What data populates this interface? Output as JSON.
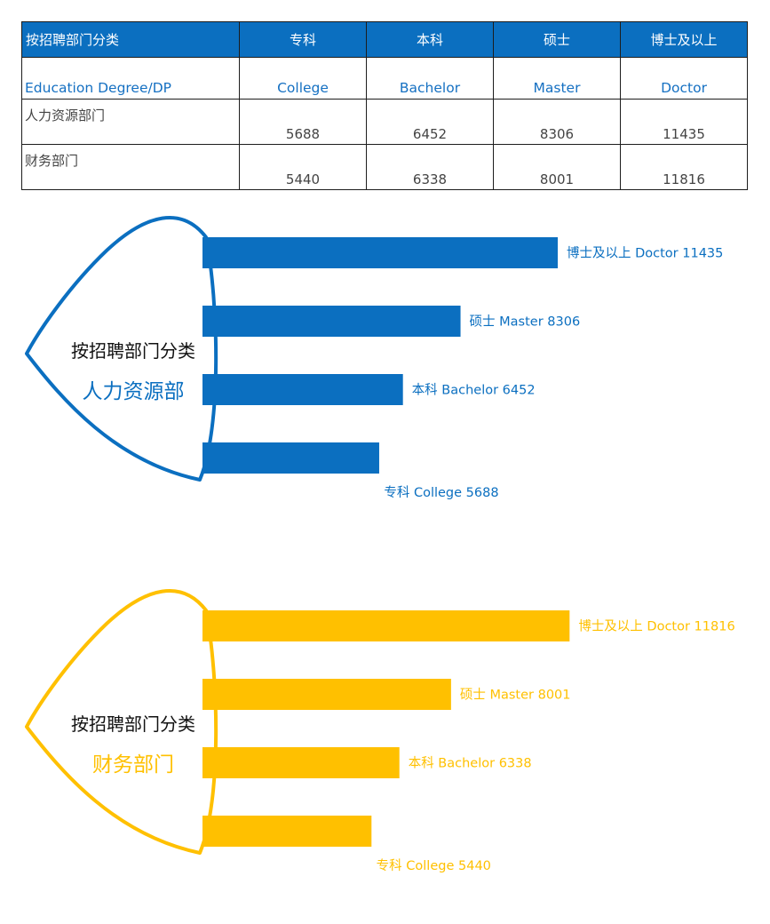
{
  "table": {
    "headers": [
      "按招聘部门分类",
      "专科",
      "本科",
      "硕士",
      "博士及以上"
    ],
    "english_row": [
      "Education  Degree/DP",
      "College",
      "Bachelor",
      "Master",
      "Doctor"
    ],
    "rows": [
      {
        "label": "人力资源部门",
        "values": [
          "5688",
          "6452",
          "8306",
          "11435"
        ]
      },
      {
        "label": "财务部门",
        "values": [
          "5440",
          "6338",
          "8001",
          "11816"
        ]
      }
    ]
  },
  "colors": {
    "blue": "#0b6fc0",
    "gold": "#ffc000",
    "header_bg": "#0b6fc0"
  },
  "chart_data": [
    {
      "type": "bar",
      "orientation": "horizontal",
      "title": "按招聘部门分类",
      "subtitle": "人力资源部",
      "color": "#0b6fc0",
      "categories": [
        "博士及以上 Doctor",
        "硕士 Master",
        "本科 Bachelor",
        "专科 College"
      ],
      "values": [
        11435,
        8306,
        6452,
        5688
      ],
      "labels": [
        "博士及以上 Doctor 11435",
        "硕士 Master 8306",
        "本科 Bachelor 6452",
        "专科 College 5688"
      ]
    },
    {
      "type": "bar",
      "orientation": "horizontal",
      "title": "按招聘部门分类",
      "subtitle": "财务部门",
      "color": "#ffc000",
      "categories": [
        "博士及以上 Doctor",
        "硕士 Master",
        "本科 Bachelor",
        "专科 College"
      ],
      "values": [
        11816,
        8001,
        6338,
        5440
      ],
      "labels": [
        "博士及以上 Doctor 11816",
        "硕士 Master 8001",
        "本科 Bachelor 6338",
        "专科 College 5440"
      ]
    }
  ]
}
